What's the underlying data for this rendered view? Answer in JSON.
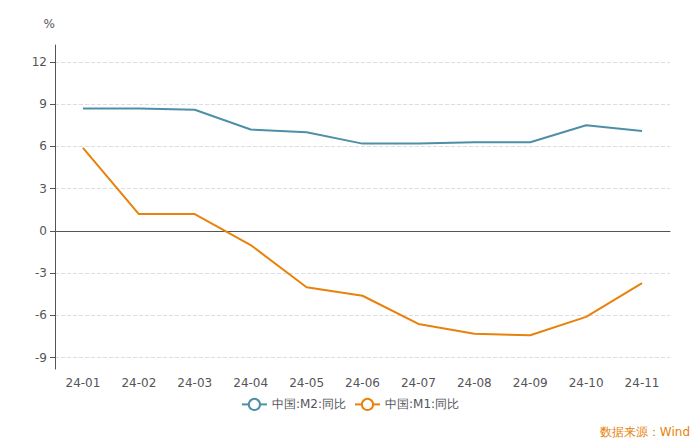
{
  "chart_data": {
    "type": "line",
    "ylabel": "%",
    "categories": [
      "24-01",
      "24-02",
      "24-03",
      "24-04",
      "24-05",
      "24-06",
      "24-07",
      "24-08",
      "24-09",
      "24-10",
      "24-11"
    ],
    "series": [
      {
        "name": "中国:M2:同比",
        "color": "#4e8fa8",
        "values": [
          8.7,
          8.7,
          8.6,
          7.2,
          7.0,
          6.2,
          6.2,
          6.3,
          6.3,
          7.5,
          7.1
        ]
      },
      {
        "name": "中国:M1:同比",
        "color": "#e8820a",
        "values": [
          5.9,
          1.2,
          1.2,
          -1.0,
          -4.0,
          -4.6,
          -6.6,
          -7.3,
          -7.4,
          -6.1,
          -3.7
        ]
      }
    ],
    "ylim": [
      -9.8,
      13.2
    ],
    "yticks": [
      -9,
      -6,
      -3,
      0,
      3,
      6,
      9,
      12
    ],
    "grid": true,
    "legend": "bottom",
    "annotations": [
      {
        "text": "数据来源：Wind",
        "color": "#e8820a"
      }
    ]
  }
}
